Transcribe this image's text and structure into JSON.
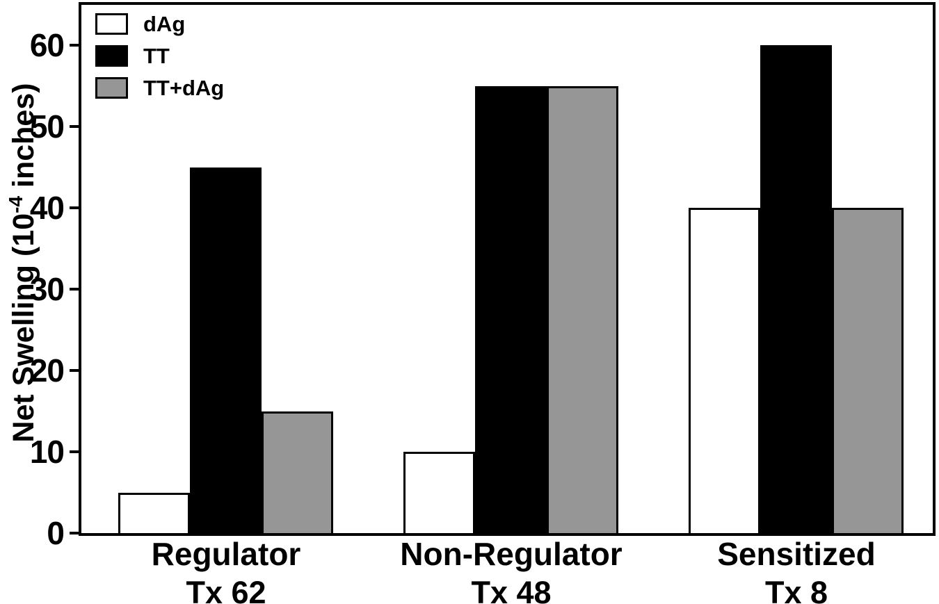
{
  "chart_data": {
    "type": "bar",
    "title": "",
    "categories": [
      "Regulator",
      "Non-Regulator",
      "Sensitized"
    ],
    "category_sublabels": [
      "Tx 62",
      "Tx 48",
      "Tx 8"
    ],
    "series": [
      {
        "name": "dAg",
        "color": "#ffffff",
        "values": [
          5,
          10,
          40
        ]
      },
      {
        "name": "TT",
        "color": "#000000",
        "values": [
          45,
          55,
          60
        ]
      },
      {
        "name": "TT+dAg",
        "color": "#969696",
        "values": [
          15,
          55,
          40
        ]
      }
    ],
    "xlabel": "",
    "ylabel": "Net Swelling (10^-4 inches)",
    "ylabel_parts": {
      "prefix": "Net Swelling (10",
      "superscript": "-4",
      "suffix": " inches)"
    },
    "yticks": [
      0,
      10,
      20,
      30,
      40,
      50,
      60
    ],
    "ylim": [
      0,
      65
    ],
    "grid": false,
    "legend_position": "top-left",
    "axis_color": "#000000",
    "background_color": "#ffffff"
  }
}
